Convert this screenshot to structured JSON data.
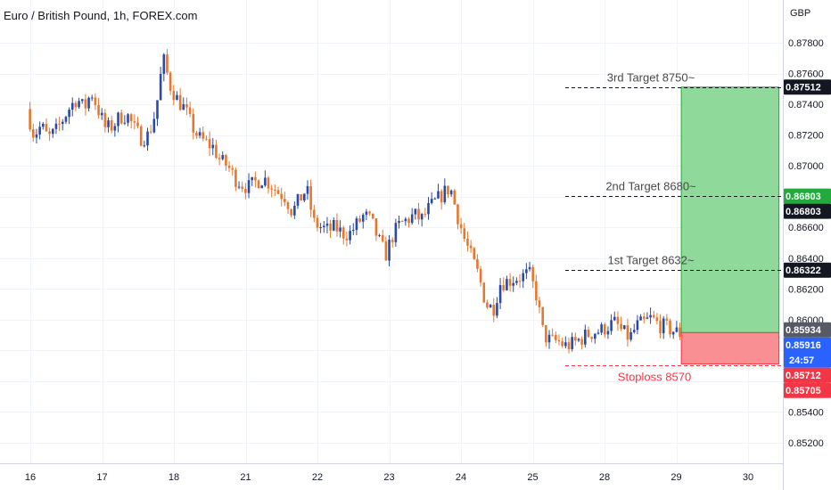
{
  "chart_data": {
    "type": "candlestick",
    "title": "Euro / British Pound, 1h, FOREX.com",
    "currency_label": "GBP",
    "y_ticks": [
      "0.87800",
      "0.87600",
      "0.87400",
      "0.87200",
      "0.87000",
      "0.86800",
      "0.86600",
      "0.86400",
      "0.86200",
      "0.86000",
      "0.85800",
      "0.85600",
      "0.85400",
      "0.85200"
    ],
    "y_tick_values": [
      0.878,
      0.876,
      0.874,
      0.872,
      0.87,
      0.868,
      0.866,
      0.864,
      0.862,
      0.86,
      0.858,
      0.856,
      0.854,
      0.852
    ],
    "x_ticks": [
      "16",
      "17",
      "18",
      "21",
      "22",
      "23",
      "24",
      "25",
      "28",
      "29",
      "30"
    ],
    "x_tick_positions": [
      0.5,
      10.5,
      20.5,
      30.5,
      40.5,
      50.5,
      60.5,
      70.5,
      80.5,
      90.5,
      100.5
    ],
    "ylim": [
      0.8512,
      0.882
    ],
    "grid": true,
    "colors": {
      "up": "#2a4aa8",
      "down": "#e8772e",
      "profit": "#8fd99a",
      "loss": "#f98f93",
      "last": "#2962ff"
    },
    "price_path": [
      [
        0.0,
        0.8737
      ],
      [
        1.0,
        0.872
      ],
      [
        2.0,
        0.8726
      ],
      [
        3.0,
        0.8718
      ],
      [
        4.0,
        0.8722
      ],
      [
        5.0,
        0.873
      ],
      [
        6.0,
        0.8738
      ],
      [
        7.0,
        0.8744
      ],
      [
        8.0,
        0.8737
      ],
      [
        9.0,
        0.8748
      ],
      [
        10.0,
        0.8736
      ],
      [
        11.0,
        0.8724
      ],
      [
        12.0,
        0.8726
      ],
      [
        13.0,
        0.8732
      ],
      [
        14.0,
        0.8733
      ],
      [
        15.0,
        0.8724
      ],
      [
        16.0,
        0.8718
      ],
      [
        17.0,
        0.872
      ],
      [
        18.0,
        0.8736
      ],
      [
        19.0,
        0.877
      ],
      [
        20.0,
        0.8752
      ],
      [
        21.0,
        0.8743
      ],
      [
        22.0,
        0.8737
      ],
      [
        23.0,
        0.8726
      ],
      [
        24.0,
        0.8718
      ],
      [
        25.0,
        0.8715
      ],
      [
        26.0,
        0.8712
      ],
      [
        27.0,
        0.8703
      ],
      [
        28.0,
        0.87
      ],
      [
        29.0,
        0.8692
      ],
      [
        30.0,
        0.8688
      ],
      [
        31.0,
        0.8686
      ],
      [
        32.0,
        0.869
      ],
      [
        33.0,
        0.8692
      ],
      [
        34.0,
        0.8688
      ],
      [
        35.0,
        0.8683
      ],
      [
        36.0,
        0.868
      ],
      [
        37.0,
        0.867
      ],
      [
        38.0,
        0.8678
      ],
      [
        39.0,
        0.8685
      ],
      [
        40.0,
        0.8663
      ],
      [
        41.0,
        0.866
      ],
      [
        42.0,
        0.8658
      ],
      [
        43.0,
        0.866
      ],
      [
        44.0,
        0.8656
      ],
      [
        45.0,
        0.8656
      ],
      [
        46.0,
        0.8662
      ],
      [
        47.0,
        0.8668
      ],
      [
        48.0,
        0.8664
      ],
      [
        49.0,
        0.8652
      ],
      [
        50.0,
        0.8642
      ],
      [
        51.0,
        0.8655
      ],
      [
        52.0,
        0.8662
      ],
      [
        53.0,
        0.8665
      ],
      [
        54.0,
        0.8668
      ],
      [
        55.0,
        0.8665
      ],
      [
        56.0,
        0.8672
      ],
      [
        57.0,
        0.8677
      ],
      [
        58.0,
        0.8682
      ],
      [
        59.0,
        0.8686
      ],
      [
        60.0,
        0.8668
      ],
      [
        61.0,
        0.8652
      ],
      [
        62.0,
        0.864
      ],
      [
        63.0,
        0.8628
      ],
      [
        64.0,
        0.861
      ],
      [
        65.0,
        0.8607
      ],
      [
        66.0,
        0.8624
      ],
      [
        67.0,
        0.8625
      ],
      [
        68.0,
        0.8627
      ],
      [
        69.0,
        0.8628
      ],
      [
        70.0,
        0.863
      ],
      [
        71.0,
        0.8616
      ],
      [
        72.0,
        0.859
      ],
      [
        73.0,
        0.8586
      ],
      [
        74.0,
        0.8586
      ],
      [
        75.0,
        0.8583
      ],
      [
        76.0,
        0.8584
      ],
      [
        77.0,
        0.8587
      ],
      [
        78.0,
        0.859
      ],
      [
        79.0,
        0.8592
      ],
      [
        80.0,
        0.8593
      ],
      [
        81.0,
        0.8596
      ],
      [
        82.0,
        0.8598
      ],
      [
        83.0,
        0.8592
      ],
      [
        84.0,
        0.8588
      ],
      [
        85.0,
        0.8596
      ],
      [
        86.0,
        0.8598
      ],
      [
        87.0,
        0.8601
      ],
      [
        88.0,
        0.8597
      ],
      [
        89.0,
        0.8595
      ],
      [
        90.0,
        0.8593
      ],
      [
        91.0,
        0.8591
      ]
    ],
    "position": {
      "x_start": 91.2,
      "x_end": 104.8,
      "entry": 0.85916,
      "stop": 0.85712,
      "target": 0.87512
    },
    "levels": [
      {
        "price": 0.87512,
        "label": "3rd Target 8750~",
        "style": "dark"
      },
      {
        "price": 0.86803,
        "label": "2nd Target 8680~",
        "style": "dark"
      },
      {
        "price": 0.86322,
        "label": "1st Target 8632~",
        "style": "dark"
      },
      {
        "price": 0.85705,
        "label": "Stoploss 8570",
        "style": "red"
      }
    ],
    "price_tags": [
      {
        "price": 0.87512,
        "text": "0.87512",
        "color": "#131722"
      },
      {
        "price": 0.86803,
        "text": "0.86803",
        "color": "#22ab3c"
      },
      {
        "price": 0.86803,
        "text": "0.86803",
        "color": "#131722"
      },
      {
        "price": 0.86322,
        "text": "0.86322",
        "color": "#131722"
      },
      {
        "price": 0.85934,
        "text": "0.85934",
        "color": "#555a64"
      },
      {
        "price": 0.85916,
        "text": "0.85916",
        "color": "#2962ff",
        "subtext": "24:57"
      },
      {
        "price": 0.85712,
        "text": "0.85712",
        "color": "#f23645"
      },
      {
        "price": 0.85705,
        "text": "0.85705",
        "color": "#f23645"
      }
    ]
  }
}
